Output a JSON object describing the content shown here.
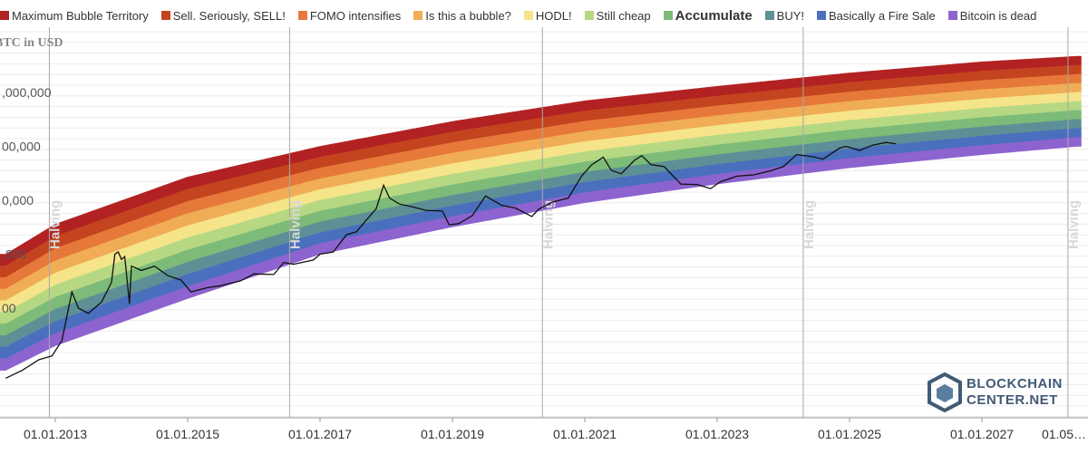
{
  "legend": [
    {
      "label": "Maximum Bubble Territory",
      "color": "#b22222"
    },
    {
      "label": "Sell. Seriously, SELL!",
      "color": "#c4441f"
    },
    {
      "label": "FOMO intensifies",
      "color": "#e6793a"
    },
    {
      "label": "Is this a bubble?",
      "color": "#f0ad55"
    },
    {
      "label": "HODL!",
      "color": "#f5e48a"
    },
    {
      "label": "Still cheap",
      "color": "#b6d882"
    },
    {
      "label": "Accumulate",
      "color": "#7dbb78",
      "bold": true
    },
    {
      "label": "BUY!",
      "color": "#5d9096"
    },
    {
      "label": "Basically a Fire Sale",
      "color": "#4a6fbd"
    },
    {
      "label": "Bitcoin is dead",
      "color": "#8c63cf"
    }
  ],
  "chart_data": {
    "type": "area",
    "y_title": "BTC in USD",
    "y_scale": "log",
    "y_tick_labels": [
      ",000,000",
      "00,000",
      "0,000",
      ",000",
      "00"
    ],
    "y_tick_values": [
      1000000,
      100000,
      10000,
      1000,
      100
    ],
    "x_tick_labels": [
      "01.01.2013",
      "01.01.2015",
      "01.01.2017",
      "01.01.2019",
      "01.01.2021",
      "01.01.2023",
      "01.01.2025",
      "01.01.2027",
      "01.05…"
    ],
    "x_tick_years": [
      2013,
      2015,
      2017,
      2019,
      2021,
      2023,
      2025,
      2027,
      2029
    ],
    "xlim_years": [
      2012.25,
      2028.45
    ],
    "halvings": [
      {
        "label": "Halving",
        "year": 2012.91
      },
      {
        "label": "Halving",
        "year": 2016.54
      },
      {
        "label": "Halving",
        "year": 2020.36
      },
      {
        "label": "Halving",
        "year": 2024.3
      },
      {
        "label": "Halving",
        "year": 2028.3
      }
    ],
    "rainbow_bands": [
      {
        "name": "Maximum Bubble Territory",
        "upper": [
          [
            2012.25,
            1000
          ],
          [
            2013,
            3600
          ],
          [
            2015,
            27000
          ],
          [
            2017,
            100000
          ],
          [
            2019,
            290000
          ],
          [
            2021,
            700000
          ],
          [
            2023,
            1300000
          ],
          [
            2025,
            2300000
          ],
          [
            2027,
            3700000
          ],
          [
            2028.45,
            4700000
          ]
        ]
      },
      {
        "name": "Bitcoin is dead",
        "lower": [
          [
            2012.25,
            7
          ],
          [
            2013,
            20
          ],
          [
            2015,
            150
          ],
          [
            2017,
            1000
          ],
          [
            2019,
            3200
          ],
          [
            2021,
            9000
          ],
          [
            2023,
            20000
          ],
          [
            2025,
            40000
          ],
          [
            2027,
            70000
          ],
          [
            2028.45,
            100000
          ]
        ]
      }
    ],
    "series": [
      {
        "name": "BTC price",
        "points": [
          [
            2012.25,
            5
          ],
          [
            2012.5,
            7
          ],
          [
            2012.75,
            11
          ],
          [
            2012.95,
            13
          ],
          [
            2013.1,
            25
          ],
          [
            2013.25,
            200
          ],
          [
            2013.35,
            100
          ],
          [
            2013.5,
            80
          ],
          [
            2013.7,
            130
          ],
          [
            2013.85,
            300
          ],
          [
            2013.9,
            1000
          ],
          [
            2013.95,
            1100
          ],
          [
            2014.0,
            800
          ],
          [
            2014.05,
            900
          ],
          [
            2014.12,
            120
          ],
          [
            2014.15,
            600
          ],
          [
            2014.3,
            500
          ],
          [
            2014.5,
            600
          ],
          [
            2014.7,
            400
          ],
          [
            2014.9,
            330
          ],
          [
            2015.05,
            200
          ],
          [
            2015.3,
            240
          ],
          [
            2015.5,
            260
          ],
          [
            2015.8,
            320
          ],
          [
            2016.0,
            430
          ],
          [
            2016.3,
            420
          ],
          [
            2016.45,
            700
          ],
          [
            2016.6,
            650
          ],
          [
            2016.9,
            780
          ],
          [
            2017.0,
            1000
          ],
          [
            2017.2,
            1100
          ],
          [
            2017.4,
            2300
          ],
          [
            2017.55,
            2600
          ],
          [
            2017.7,
            4300
          ],
          [
            2017.85,
            7000
          ],
          [
            2017.96,
            19000
          ],
          [
            2018.05,
            11000
          ],
          [
            2018.2,
            8500
          ],
          [
            2018.4,
            7500
          ],
          [
            2018.6,
            6500
          ],
          [
            2018.85,
            6300
          ],
          [
            2018.95,
            3500
          ],
          [
            2019.1,
            3700
          ],
          [
            2019.3,
            5200
          ],
          [
            2019.5,
            12000
          ],
          [
            2019.75,
            8000
          ],
          [
            2019.95,
            7200
          ],
          [
            2020.2,
            5000
          ],
          [
            2020.3,
            6800
          ],
          [
            2020.5,
            9200
          ],
          [
            2020.75,
            11000
          ],
          [
            2020.95,
            28000
          ],
          [
            2021.1,
            45000
          ],
          [
            2021.28,
            63000
          ],
          [
            2021.4,
            36000
          ],
          [
            2021.55,
            31000
          ],
          [
            2021.75,
            55000
          ],
          [
            2021.86,
            67000
          ],
          [
            2022.0,
            46000
          ],
          [
            2022.2,
            42000
          ],
          [
            2022.45,
            20000
          ],
          [
            2022.7,
            19500
          ],
          [
            2022.9,
            16500
          ],
          [
            2023.05,
            22000
          ],
          [
            2023.3,
            28000
          ],
          [
            2023.55,
            29500
          ],
          [
            2023.8,
            35000
          ],
          [
            2024.0,
            42000
          ],
          [
            2024.2,
            70000
          ],
          [
            2024.45,
            64000
          ],
          [
            2024.6,
            58000
          ],
          [
            2024.85,
            93000
          ],
          [
            2024.95,
            100000
          ],
          [
            2025.15,
            84000
          ],
          [
            2025.35,
            105000
          ],
          [
            2025.55,
            118000
          ],
          [
            2025.7,
            112000
          ]
        ]
      }
    ]
  },
  "watermark": {
    "line1": "BLOCKCHAIN",
    "line2": "CENTER",
    "line2_suffix": ".NET"
  }
}
